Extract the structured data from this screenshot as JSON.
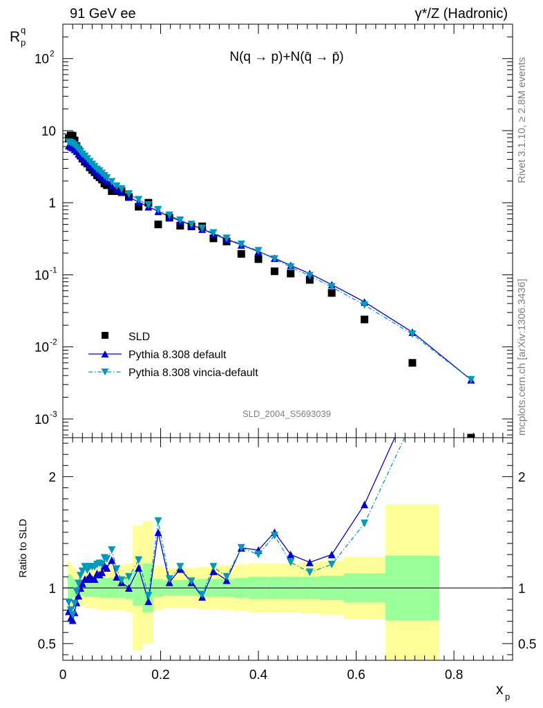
{
  "header": {
    "left": "91 GeV ee",
    "right": "γ*/Z (Hadronic)"
  },
  "side_text": {
    "rivet": "Rivet 3.1.10, ≥ 2.8M events",
    "mcplots": "mcplots.cern.ch [arXiv:1306.3436]"
  },
  "ref_label": "SLD_2004_S5693039",
  "colors": {
    "sld": "#000000",
    "pythia_default": "#0000cc",
    "pythia_vincia": "#0099bb",
    "band_inner": "#99ff99",
    "band_outer": "#ffff99"
  },
  "chart_data": [
    {
      "type": "scatter",
      "panel": "main",
      "title": "N(q → p)+N(q̄ → p̄)",
      "ylabel_main": "R",
      "ylabel_sub": "p",
      "ylabel_sup": "q",
      "xlabel_main": "x",
      "xlabel_sub": "p",
      "xlim": [
        0,
        0.92
      ],
      "ylim": [
        0.00055,
        300
      ],
      "yscale": "log",
      "x_ticks": [
        "0",
        "0.2",
        "0.4",
        "0.6",
        "0.8"
      ],
      "y_ticks": [
        {
          "base": "10",
          "exp": "-3"
        },
        {
          "base": "10",
          "exp": "-2"
        },
        {
          "base": "10",
          "exp": "-1"
        },
        {
          "base": "1",
          "exp": ""
        },
        {
          "base": "10",
          "exp": ""
        },
        {
          "base": "10",
          "exp": "2"
        }
      ],
      "legend_position": "bottom-left",
      "series": [
        {
          "name": "SLD",
          "marker": "square",
          "x": [
            0.012,
            0.016,
            0.02,
            0.024,
            0.028,
            0.032,
            0.036,
            0.04,
            0.045,
            0.05,
            0.055,
            0.06,
            0.065,
            0.07,
            0.075,
            0.08,
            0.085,
            0.09,
            0.1,
            0.11,
            0.12,
            0.135,
            0.155,
            0.175,
            0.195,
            0.218,
            0.24,
            0.263,
            0.285,
            0.308,
            0.335,
            0.365,
            0.4,
            0.433,
            0.466,
            0.505,
            0.55,
            0.617,
            0.715,
            0.835
          ],
          "y": [
            7.8,
            8.6,
            8.5,
            7.3,
            6.1,
            5.3,
            4.6,
            4.1,
            3.7,
            3.5,
            3.1,
            2.85,
            2.65,
            2.4,
            2.25,
            2.1,
            1.85,
            1.75,
            1.45,
            1.45,
            1.45,
            1.2,
            0.88,
            1.0,
            0.5,
            0.62,
            0.48,
            0.47,
            0.47,
            0.32,
            0.29,
            0.195,
            0.165,
            0.112,
            0.104,
            0.085,
            0.056,
            0.024,
            0.006,
            0.00055
          ]
        },
        {
          "name": "Pythia 8.308 default",
          "marker": "triangle-up",
          "line": "solid",
          "x": [
            0.012,
            0.016,
            0.02,
            0.024,
            0.028,
            0.032,
            0.036,
            0.04,
            0.045,
            0.05,
            0.055,
            0.06,
            0.065,
            0.07,
            0.075,
            0.08,
            0.085,
            0.09,
            0.1,
            0.11,
            0.12,
            0.135,
            0.155,
            0.175,
            0.195,
            0.218,
            0.24,
            0.263,
            0.285,
            0.308,
            0.335,
            0.365,
            0.4,
            0.433,
            0.466,
            0.505,
            0.55,
            0.617,
            0.715,
            0.835
          ],
          "y": [
            6.2,
            6.0,
            5.8,
            5.5,
            5.2,
            4.8,
            4.5,
            4.2,
            3.9,
            3.6,
            3.3,
            3.05,
            2.8,
            2.6,
            2.45,
            2.3,
            2.15,
            2.0,
            1.75,
            1.55,
            1.4,
            1.2,
            1.02,
            0.88,
            0.76,
            0.64,
            0.56,
            0.49,
            0.43,
            0.37,
            0.31,
            0.26,
            0.21,
            0.17,
            0.135,
            0.104,
            0.073,
            0.042,
            0.016,
            0.0035
          ]
        },
        {
          "name": "Pythia 8.308 vincia-default",
          "marker": "triangle-down",
          "line": "dashdot",
          "x": [
            0.012,
            0.016,
            0.02,
            0.024,
            0.028,
            0.032,
            0.036,
            0.04,
            0.045,
            0.05,
            0.055,
            0.06,
            0.065,
            0.07,
            0.075,
            0.08,
            0.085,
            0.09,
            0.1,
            0.11,
            0.12,
            0.135,
            0.155,
            0.175,
            0.195,
            0.218,
            0.24,
            0.263,
            0.285,
            0.308,
            0.335,
            0.365,
            0.4,
            0.433,
            0.466,
            0.505,
            0.55,
            0.617,
            0.715,
            0.835
          ],
          "y": [
            6.9,
            6.8,
            6.6,
            6.3,
            5.9,
            5.5,
            5.1,
            4.7,
            4.4,
            4.05,
            3.7,
            3.4,
            3.15,
            2.9,
            2.75,
            2.55,
            2.35,
            2.2,
            1.95,
            1.7,
            1.55,
            1.32,
            1.1,
            0.93,
            0.8,
            0.67,
            0.57,
            0.5,
            0.44,
            0.38,
            0.32,
            0.265,
            0.215,
            0.165,
            0.128,
            0.097,
            0.068,
            0.038,
            0.015,
            0.0035
          ]
        }
      ]
    },
    {
      "type": "line",
      "panel": "ratio",
      "ylabel": "Ratio to SLD",
      "xlim": [
        0,
        0.92
      ],
      "ylim": [
        0.35,
        2.35
      ],
      "y_ticks": [
        "0.5",
        "1",
        "2"
      ],
      "y_ticks_right": [
        "0.5",
        "1",
        "2"
      ],
      "bands": {
        "edges": [
          0.01,
          0.014,
          0.018,
          0.022,
          0.026,
          0.03,
          0.034,
          0.038,
          0.042,
          0.047,
          0.052,
          0.057,
          0.062,
          0.067,
          0.072,
          0.077,
          0.082,
          0.087,
          0.094,
          0.105,
          0.115,
          0.127,
          0.143,
          0.163,
          0.185,
          0.205,
          0.23,
          0.25,
          0.275,
          0.295,
          0.32,
          0.35,
          0.38,
          0.415,
          0.45,
          0.485,
          0.525,
          0.575,
          0.66,
          0.77
        ],
        "inner_lo": [
          0.88,
          0.88,
          0.91,
          0.92,
          0.93,
          0.93,
          0.93,
          0.93,
          0.92,
          0.92,
          0.92,
          0.92,
          0.92,
          0.92,
          0.92,
          0.91,
          0.91,
          0.91,
          0.91,
          0.91,
          0.91,
          0.9,
          0.84,
          0.78,
          0.92,
          0.93,
          0.93,
          0.93,
          0.92,
          0.92,
          0.92,
          0.91,
          0.9,
          0.9,
          0.9,
          0.9,
          0.89,
          0.87,
          0.71
        ],
        "inner_hi": [
          1.12,
          1.12,
          1.09,
          1.08,
          1.07,
          1.07,
          1.07,
          1.07,
          1.08,
          1.08,
          1.08,
          1.08,
          1.08,
          1.08,
          1.08,
          1.09,
          1.09,
          1.09,
          1.09,
          1.09,
          1.09,
          1.1,
          1.16,
          1.22,
          1.08,
          1.07,
          1.07,
          1.07,
          1.08,
          1.08,
          1.08,
          1.09,
          1.1,
          1.1,
          1.1,
          1.1,
          1.11,
          1.13,
          1.29
        ],
        "outer_lo": [
          0.76,
          0.78,
          0.8,
          0.82,
          0.84,
          0.85,
          0.85,
          0.84,
          0.82,
          0.82,
          0.82,
          0.82,
          0.82,
          0.81,
          0.81,
          0.8,
          0.8,
          0.8,
          0.8,
          0.8,
          0.8,
          0.78,
          0.44,
          0.5,
          0.8,
          0.82,
          0.82,
          0.82,
          0.81,
          0.81,
          0.8,
          0.79,
          0.78,
          0.78,
          0.78,
          0.77,
          0.76,
          0.72,
          0.0
        ],
        "outer_hi": [
          1.24,
          1.22,
          1.2,
          1.18,
          1.16,
          1.15,
          1.15,
          1.16,
          1.18,
          1.18,
          1.18,
          1.18,
          1.18,
          1.19,
          1.19,
          1.2,
          1.2,
          1.2,
          1.2,
          1.2,
          1.2,
          1.22,
          1.56,
          1.6,
          1.2,
          1.18,
          1.18,
          1.18,
          1.19,
          1.19,
          1.2,
          1.21,
          1.22,
          1.22,
          1.22,
          1.23,
          1.24,
          1.28,
          1.75
        ]
      },
      "series": [
        {
          "name": "Pythia 8.308 default",
          "x": [
            0.012,
            0.016,
            0.02,
            0.024,
            0.028,
            0.032,
            0.036,
            0.04,
            0.045,
            0.05,
            0.055,
            0.06,
            0.065,
            0.07,
            0.075,
            0.08,
            0.085,
            0.09,
            0.1,
            0.11,
            0.12,
            0.135,
            0.155,
            0.175,
            0.195,
            0.218,
            0.24,
            0.263,
            0.285,
            0.308,
            0.335,
            0.365,
            0.4,
            0.433,
            0.466,
            0.505,
            0.55,
            0.617,
            0.715
          ],
          "y": [
            0.79,
            0.73,
            0.71,
            0.78,
            0.87,
            0.93,
            1.0,
            1.04,
            1.08,
            1.08,
            1.11,
            1.08,
            1.08,
            1.13,
            1.12,
            1.14,
            1.2,
            1.18,
            1.25,
            1.1,
            1.05,
            1.0,
            1.18,
            0.88,
            1.5,
            1.05,
            1.17,
            1.05,
            0.92,
            1.15,
            1.07,
            1.36,
            1.34,
            1.5,
            1.3,
            1.23,
            1.3,
            1.75,
            2.7
          ]
        },
        {
          "name": "Pythia 8.308 vincia-default",
          "x": [
            0.012,
            0.016,
            0.02,
            0.024,
            0.028,
            0.032,
            0.036,
            0.04,
            0.045,
            0.05,
            0.055,
            0.06,
            0.065,
            0.07,
            0.075,
            0.08,
            0.085,
            0.09,
            0.1,
            0.11,
            0.12,
            0.135,
            0.155,
            0.175,
            0.195,
            0.218,
            0.24,
            0.263,
            0.285,
            0.308,
            0.335,
            0.365,
            0.4,
            0.433,
            0.466,
            0.505,
            0.55,
            0.617,
            0.715
          ],
          "y": [
            0.87,
            0.8,
            0.76,
            0.86,
            0.97,
            1.04,
            1.11,
            1.15,
            1.19,
            1.16,
            1.19,
            1.19,
            1.19,
            1.21,
            1.22,
            1.21,
            1.27,
            1.26,
            1.34,
            1.17,
            1.07,
            1.1,
            1.25,
            0.93,
            1.6,
            1.08,
            1.19,
            1.06,
            0.94,
            1.19,
            1.1,
            1.36,
            1.3,
            1.47,
            1.23,
            1.14,
            1.21,
            1.58,
            2.5
          ]
        }
      ]
    }
  ]
}
